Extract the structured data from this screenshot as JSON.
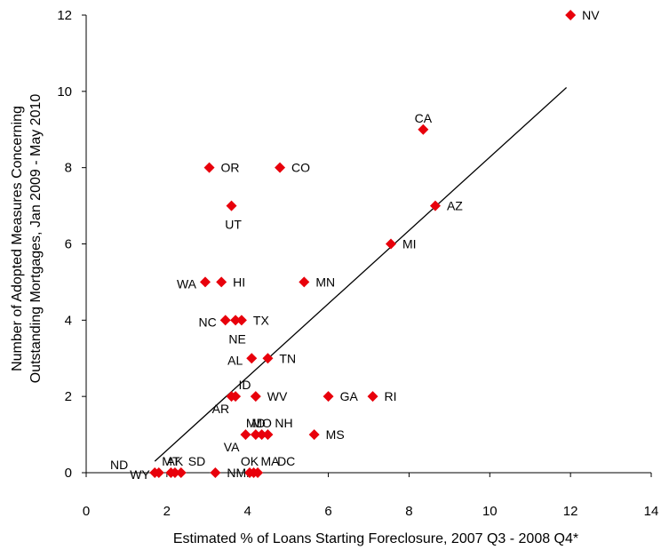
{
  "chart_data": {
    "type": "scatter",
    "title": "",
    "xlabel": "Estimated % of Loans Starting Foreclosure, 2007 Q3 - 2008 Q4*",
    "ylabel": [
      "Number of Adopted Measures Concerning",
      "Outstanding Mortgages, Jan 2009 - May 2010"
    ],
    "xlim": [
      0,
      14
    ],
    "ylim": [
      0,
      12
    ],
    "xticks": [
      0,
      2,
      4,
      6,
      8,
      10,
      12,
      14
    ],
    "yticks": [
      0,
      2,
      4,
      6,
      8,
      10,
      12
    ],
    "grid": false,
    "legend": "none",
    "marker": "diamond",
    "marker_color": "#e8000b",
    "trendline": {
      "type": "linear",
      "from": [
        1.7,
        0.3
      ],
      "to": [
        11.9,
        10.1
      ],
      "color": "#000000"
    },
    "points": [
      {
        "label": "NV",
        "x": 12.0,
        "y": 12,
        "pos": "right"
      },
      {
        "label": "CA",
        "x": 8.35,
        "y": 9,
        "pos": "above"
      },
      {
        "label": "AZ",
        "x": 8.65,
        "y": 7,
        "pos": "right"
      },
      {
        "label": "MI",
        "x": 7.55,
        "y": 6,
        "pos": "right"
      },
      {
        "label": "OR",
        "x": 3.05,
        "y": 8,
        "pos": "right"
      },
      {
        "label": "CO",
        "x": 4.8,
        "y": 8,
        "pos": "right"
      },
      {
        "label": "UT",
        "x": 3.6,
        "y": 7,
        "pos": "below"
      },
      {
        "label": "WA",
        "x": 2.95,
        "y": 5,
        "pos": "left"
      },
      {
        "label": "HI",
        "x": 3.35,
        "y": 5,
        "pos": "right"
      },
      {
        "label": "MN",
        "x": 5.4,
        "y": 5,
        "pos": "right"
      },
      {
        "label": "NC",
        "x": 3.45,
        "y": 4,
        "pos": "left"
      },
      {
        "label": "NE",
        "x": 3.7,
        "y": 4,
        "pos": "below"
      },
      {
        "label": "TX",
        "x": 3.85,
        "y": 4,
        "pos": "right"
      },
      {
        "label": "AL",
        "x": 4.1,
        "y": 3,
        "pos": "left"
      },
      {
        "label": "TN",
        "x": 4.5,
        "y": 3,
        "pos": "right"
      },
      {
        "label": "ID",
        "x": 3.6,
        "y": 2,
        "pos": "above-right"
      },
      {
        "label": "AR",
        "x": 3.7,
        "y": 2,
        "pos": "below-left"
      },
      {
        "label": "WV",
        "x": 4.2,
        "y": 2,
        "pos": "right"
      },
      {
        "label": "GA",
        "x": 6.0,
        "y": 2,
        "pos": "right"
      },
      {
        "label": "RI",
        "x": 7.1,
        "y": 2,
        "pos": "right"
      },
      {
        "label": "VA",
        "x": 3.95,
        "y": 1,
        "pos": "below-left"
      },
      {
        "label": "MD",
        "x": 4.2,
        "y": 1,
        "pos": "above"
      },
      {
        "label": "MO",
        "x": 4.35,
        "y": 1,
        "pos": "above"
      },
      {
        "label": "NH",
        "x": 4.5,
        "y": 1,
        "pos": "above-right"
      },
      {
        "label": "MS",
        "x": 5.65,
        "y": 1,
        "pos": "right"
      },
      {
        "label": "ND",
        "x": 1.7,
        "y": 0,
        "pos": "far-left"
      },
      {
        "label": "WY",
        "x": 1.8,
        "y": 0,
        "pos": "left"
      },
      {
        "label": "MT",
        "x": 2.1,
        "y": 0,
        "pos": "above"
      },
      {
        "label": "AK",
        "x": 2.2,
        "y": 0,
        "pos": "above"
      },
      {
        "label": "SD",
        "x": 2.35,
        "y": 0,
        "pos": "above-right"
      },
      {
        "label": "NM",
        "x": 3.2,
        "y": 0,
        "pos": "right"
      },
      {
        "label": "OK",
        "x": 4.05,
        "y": 0,
        "pos": "above"
      },
      {
        "label": "MA",
        "x": 4.15,
        "y": 0,
        "pos": "above-right"
      },
      {
        "label": "DC",
        "x": 4.25,
        "y": 0,
        "pos": "above-far-right"
      }
    ]
  }
}
